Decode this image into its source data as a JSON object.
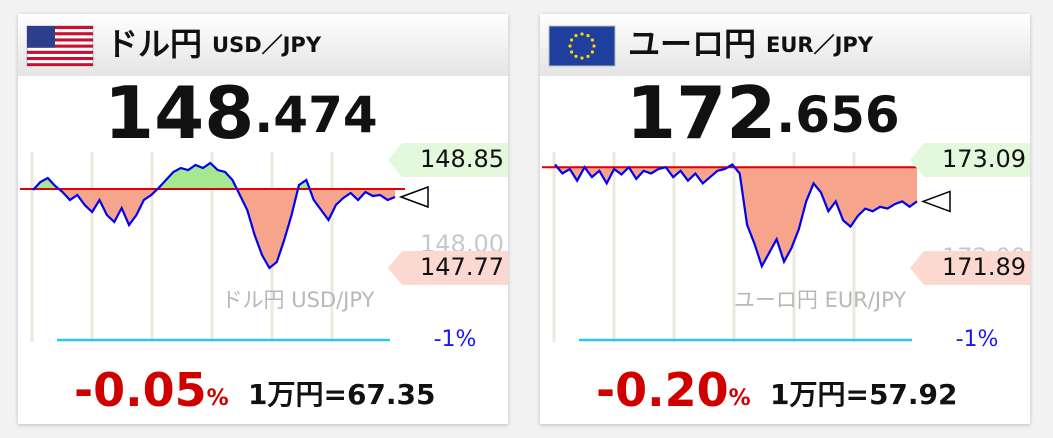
{
  "widgets": [
    {
      "title": "ドル円",
      "pair": "USD／JPY",
      "price_int": "148",
      "price_dec": ".474",
      "watermark": "ドル円 USD/JPY",
      "range_label": "-1%",
      "change": "-0.05",
      "change_unit": "%",
      "conversion": "1万円=67.35",
      "chart": {
        "type": "line",
        "color": "#0000ee",
        "values": [
          148.55,
          148.63,
          148.67,
          148.59,
          148.53,
          148.45,
          148.5,
          148.4,
          148.33,
          148.45,
          148.3,
          148.23,
          148.37,
          148.2,
          148.3,
          148.45,
          148.5,
          148.57,
          148.65,
          148.73,
          148.77,
          148.75,
          148.8,
          148.77,
          148.82,
          148.75,
          148.73,
          148.65,
          148.5,
          148.35,
          148.1,
          147.9,
          147.77,
          147.83,
          148.05,
          148.3,
          148.6,
          148.65,
          148.45,
          148.35,
          148.25,
          148.4,
          148.47,
          148.52,
          148.45,
          148.53,
          148.49,
          148.5,
          148.45,
          148.48
        ],
        "baseline": 148.56,
        "ylim": [
          147.77,
          148.85
        ],
        "yticks": [
          148.85,
          {
            "value": 148,
            "label": "148.00"
          },
          147.77
        ]
      }
    },
    {
      "title": "ユーロ円",
      "pair": "EUR／JPY",
      "price_int": "172",
      "price_dec": ".656",
      "watermark": "ユーロ円 EUR/JPY",
      "range_label": "-1%",
      "change": "-0.20",
      "change_unit": "%",
      "conversion": "1万円=57.92",
      "chart": {
        "type": "line",
        "color": "#0000ee",
        "values": [
          173.04,
          172.94,
          172.99,
          172.86,
          173.01,
          172.9,
          172.97,
          172.83,
          172.99,
          172.93,
          173.01,
          172.88,
          172.97,
          172.94,
          172.99,
          173.01,
          172.9,
          172.97,
          172.86,
          172.94,
          172.83,
          172.9,
          172.97,
          172.99,
          173.04,
          172.94,
          172.37,
          172.16,
          171.91,
          172.06,
          172.21,
          171.96,
          172.11,
          172.32,
          172.63,
          172.83,
          172.73,
          172.52,
          172.63,
          172.42,
          172.35,
          172.47,
          172.55,
          172.52,
          172.57,
          172.55,
          172.6,
          172.63,
          172.57,
          172.63
        ],
        "baseline": 173.01,
        "ylim": [
          171.89,
          173.09
        ],
        "yticks": [
          173.09,
          {
            "value": 172,
            "label": "172.00"
          },
          171.89
        ]
      }
    }
  ]
}
